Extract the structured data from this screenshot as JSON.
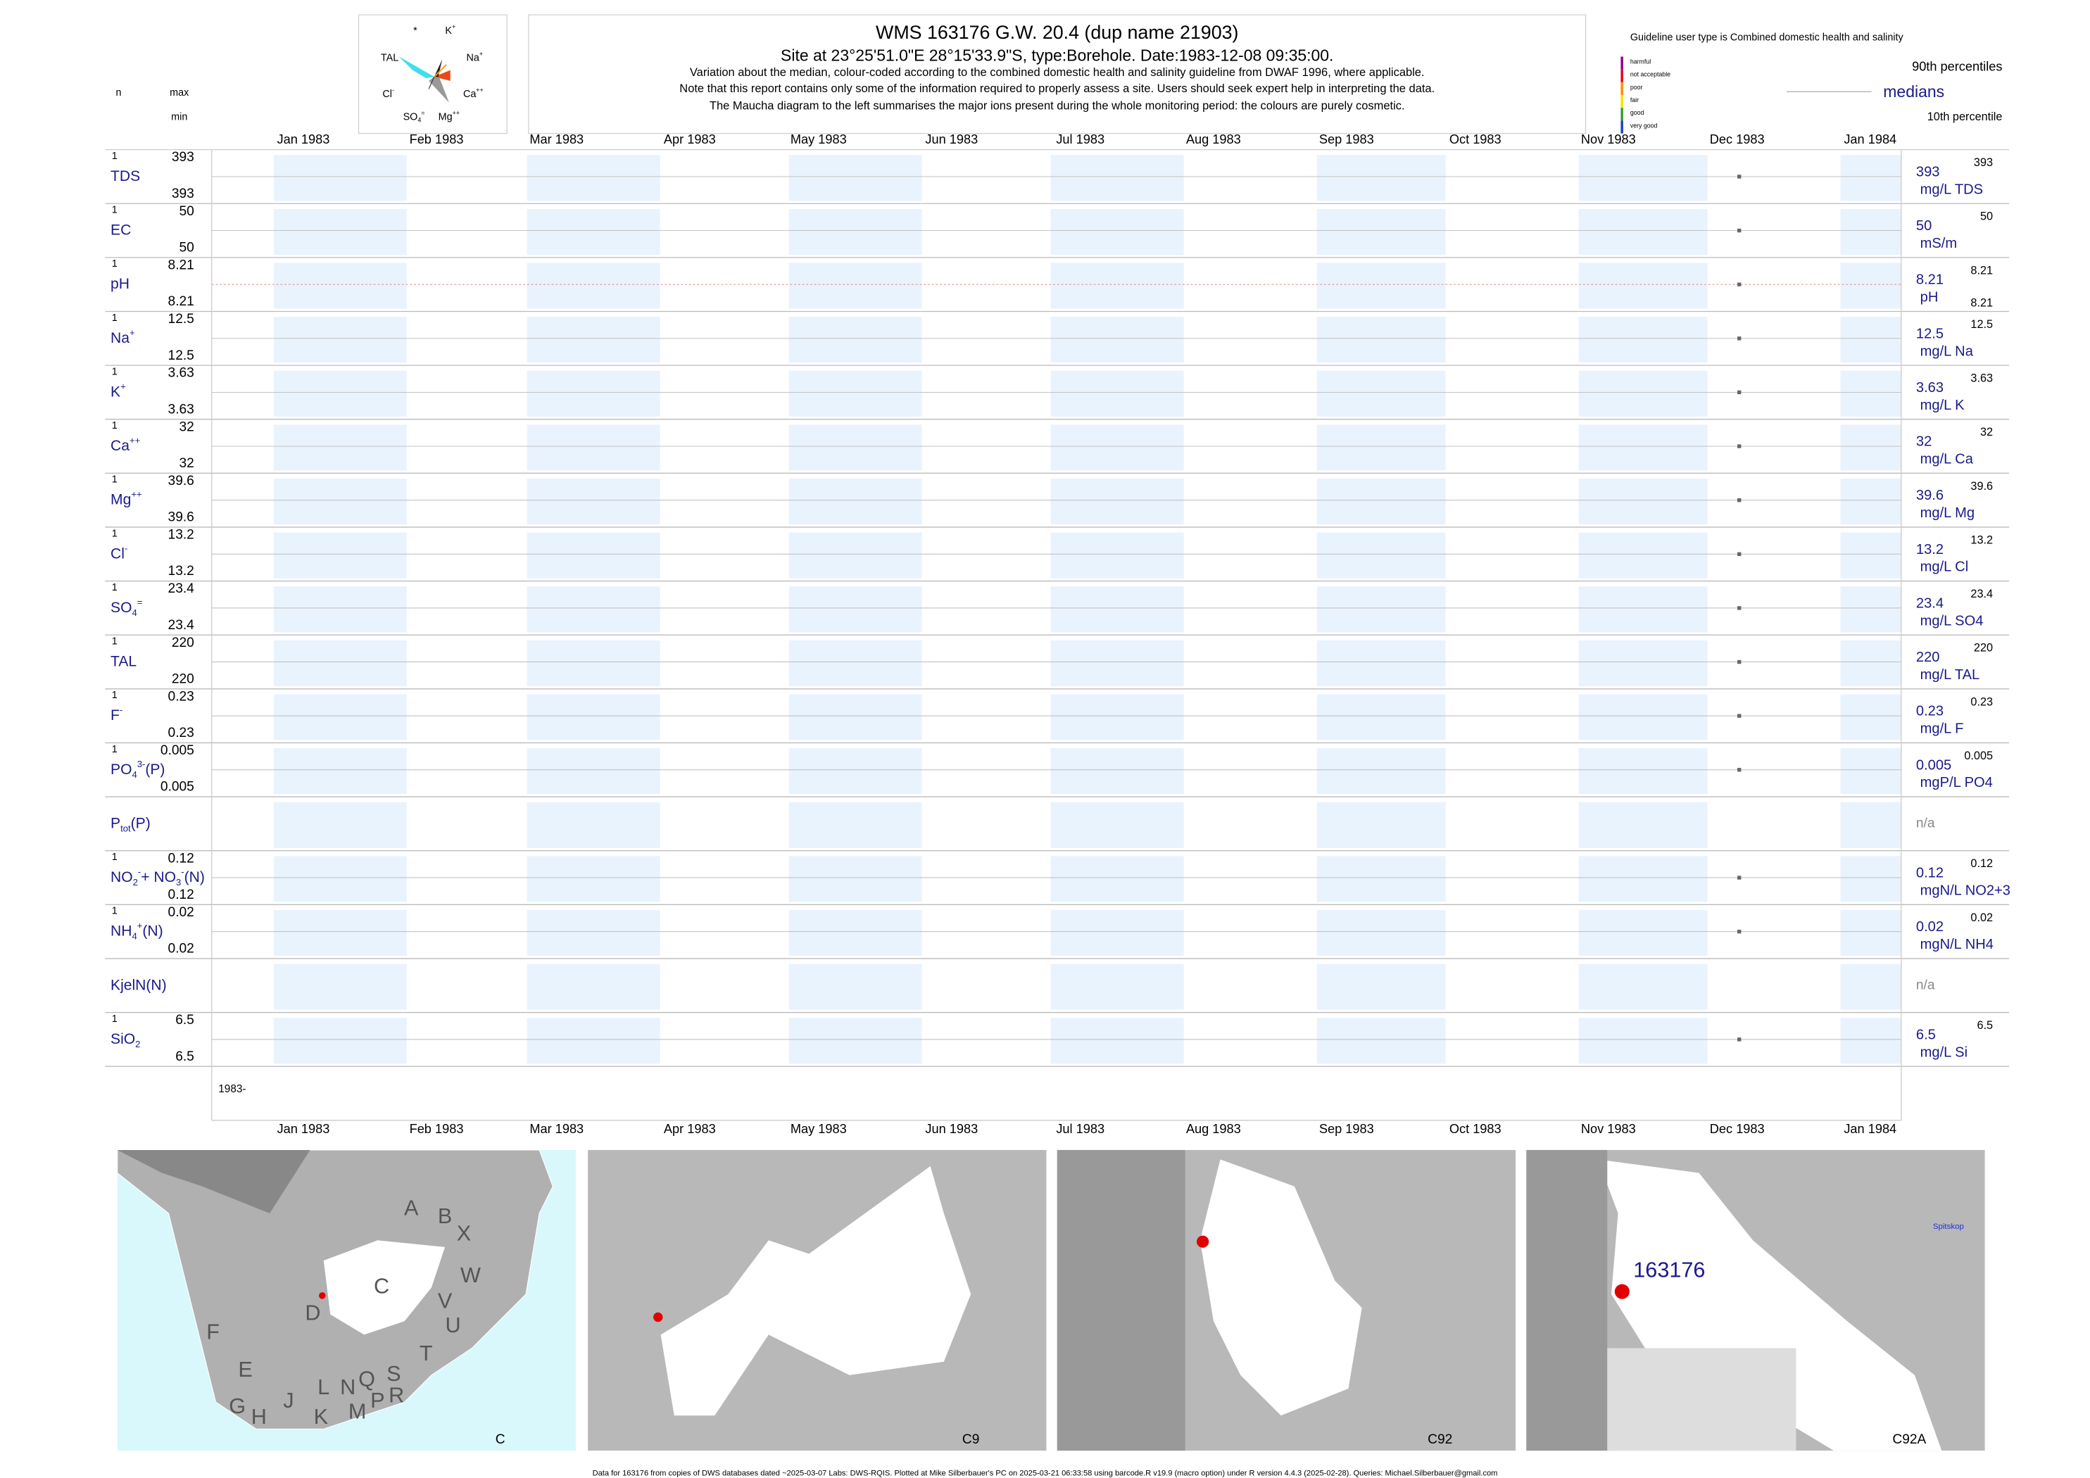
{
  "header": {
    "title": "WMS 163176  G.W. 20.4 (dup name 21903)",
    "subtitle": "Site at 23°25'51.0\"E 28°15'33.9\"S, type:Borehole. Date:1983-12-08 09:35:00.",
    "notes": [
      "Variation about the median,  colour-coded according to the combined domestic health and salinity guideline from DWAF 1996, where applicable.",
      "Note that this report contains only some of the information required to properly assess a site. Users should seek expert help in interpreting the data.",
      "The Maucha diagram to the left summarises the major ions present during the whole monitoring period: the colours are purely cosmetic."
    ],
    "column_heads": {
      "n": "n",
      "max": "max",
      "min": "min"
    }
  },
  "maucha": {
    "labels": [
      [
        {
          "text": "*"
        }
      ],
      [
        {
          "text": "K"
        },
        {
          "text": "+",
          "pos": "sup"
        }
      ],
      [
        {
          "text": "TAL"
        }
      ],
      [
        {
          "text": "Na"
        },
        {
          "text": "+",
          "pos": "sup"
        }
      ],
      [
        {
          "text": "Cl"
        },
        {
          "text": "-",
          "pos": "sup"
        }
      ],
      [
        {
          "text": "Ca"
        },
        {
          "text": "++",
          "pos": "sup"
        }
      ],
      [
        {
          "text": "SO"
        },
        {
          "text": "4",
          "pos": "sub"
        },
        {
          "text": "=",
          "pos": "sup"
        }
      ],
      [
        {
          "text": "Mg"
        },
        {
          "text": "++",
          "pos": "sup"
        }
      ]
    ]
  },
  "legend": {
    "guideline": "Guideline user type is Combined domestic health and salinity",
    "classes": [
      {
        "name": "harmful",
        "color": "#8b008b"
      },
      {
        "name": "not acceptable",
        "color": "#e8001c"
      },
      {
        "name": "poor",
        "color": "#ff8c00"
      },
      {
        "name": "fair",
        "color": "#f2e600"
      },
      {
        "name": "good",
        "color": "#2e9e2e"
      },
      {
        "name": "very good",
        "color": "#1f3fbf"
      }
    ],
    "p90": "90th percentiles",
    "median": "medians",
    "p10": "10th percentile"
  },
  "chart_data": {
    "type": "strip",
    "months": [
      "Jan 1983",
      "Feb 1983",
      "Mar 1983",
      "Apr 1983",
      "May 1983",
      "Jun 1983",
      "Jul 1983",
      "Aug 1983",
      "Sep 1983",
      "Oct 1983",
      "Nov 1983",
      "Dec 1983",
      "Jan 1984"
    ],
    "x": [
      "1983-12-08 09:35:00"
    ],
    "start_label": "1983-",
    "rows": [
      {
        "label": [
          {
            "text": "TDS"
          }
        ],
        "n": 1,
        "max": 393,
        "min": 393,
        "values": [
          393
        ],
        "unit": "mg/L TDS",
        "p90": 393
      },
      {
        "label": [
          {
            "text": "EC"
          }
        ],
        "n": 1,
        "max": 50,
        "min": 50,
        "values": [
          50
        ],
        "unit": "mS/m",
        "p90": 50
      },
      {
        "label": [
          {
            "text": "pH"
          }
        ],
        "n": 1,
        "max": 8.21,
        "min": 8.21,
        "values": [
          8.21
        ],
        "unit": "pH",
        "p90": 8.21,
        "p10": 8.21
      },
      {
        "label": [
          {
            "text": "Na"
          },
          {
            "text": "+",
            "pos": "sup"
          }
        ],
        "n": 1,
        "max": 12.5,
        "min": 12.5,
        "values": [
          12.5
        ],
        "unit": "mg/L Na",
        "p90": 12.5
      },
      {
        "label": [
          {
            "text": "K"
          },
          {
            "text": "+",
            "pos": "sup"
          }
        ],
        "n": 1,
        "max": 3.63,
        "min": 3.63,
        "values": [
          3.63
        ],
        "unit": "mg/L K",
        "p90": 3.63
      },
      {
        "label": [
          {
            "text": "Ca"
          },
          {
            "text": "++",
            "pos": "sup"
          }
        ],
        "n": 1,
        "max": 32,
        "min": 32,
        "values": [
          32
        ],
        "unit": "mg/L Ca",
        "p90": 32
      },
      {
        "label": [
          {
            "text": "Mg"
          },
          {
            "text": "++",
            "pos": "sup"
          }
        ],
        "n": 1,
        "max": 39.6,
        "min": 39.6,
        "values": [
          39.6
        ],
        "unit": "mg/L Mg",
        "p90": 39.6
      },
      {
        "label": [
          {
            "text": "Cl"
          },
          {
            "text": "-",
            "pos": "sup"
          }
        ],
        "n": 1,
        "max": 13.2,
        "min": 13.2,
        "values": [
          13.2
        ],
        "unit": "mg/L Cl",
        "p90": 13.2
      },
      {
        "label": [
          {
            "text": "SO"
          },
          {
            "text": "4",
            "pos": "sub"
          },
          {
            "text": "=",
            "pos": "sup"
          }
        ],
        "n": 1,
        "max": 23.4,
        "min": 23.4,
        "values": [
          23.4
        ],
        "unit": "mg/L SO4",
        "p90": 23.4
      },
      {
        "label": [
          {
            "text": "TAL"
          }
        ],
        "n": 1,
        "max": 220,
        "min": 220,
        "values": [
          220
        ],
        "unit": "mg/L TAL",
        "p90": 220
      },
      {
        "label": [
          {
            "text": "F"
          },
          {
            "text": "-",
            "pos": "sup"
          }
        ],
        "n": 1,
        "max": 0.23,
        "min": 0.23,
        "values": [
          0.23
        ],
        "unit": "mg/L F",
        "p90": 0.23
      },
      {
        "label": [
          {
            "text": "PO"
          },
          {
            "text": "4",
            "pos": "sub"
          },
          {
            "text": "3-",
            "pos": "sup"
          },
          {
            "text": "(P)"
          }
        ],
        "n": 1,
        "max": 0.005,
        "min": 0.005,
        "values": [
          0.005
        ],
        "unit": "mgP/L PO4",
        "p90": 0.005
      },
      {
        "label": [
          {
            "text": "P"
          },
          {
            "text": "tot",
            "pos": "sub"
          },
          {
            "text": "(P)"
          }
        ],
        "status": "n/a"
      },
      {
        "label": [
          {
            "text": "NO"
          },
          {
            "text": "2",
            "pos": "sub"
          },
          {
            "text": "-",
            "pos": "sup"
          },
          {
            "text": "+ NO"
          },
          {
            "text": "3",
            "pos": "sub"
          },
          {
            "text": "-",
            "pos": "sup"
          },
          {
            "text": "(N)"
          }
        ],
        "n": 1,
        "max": 0.12,
        "min": 0.12,
        "values": [
          0.12
        ],
        "unit": "mgN/L NO2+3",
        "p90": 0.12
      },
      {
        "label": [
          {
            "text": "NH"
          },
          {
            "text": "4",
            "pos": "sub"
          },
          {
            "text": "+",
            "pos": "sup"
          },
          {
            "text": "(N)"
          }
        ],
        "n": 1,
        "max": 0.02,
        "min": 0.02,
        "values": [
          0.02
        ],
        "unit": "mgN/L NH4",
        "p90": 0.02
      },
      {
        "label": [
          {
            "text": "KjelN(N)"
          }
        ],
        "status": "n/a"
      },
      {
        "label": [
          {
            "text": "SiO"
          },
          {
            "text": "2",
            "pos": "sub"
          }
        ],
        "n": 1,
        "max": 6.5,
        "min": 6.5,
        "values": [
          6.5
        ],
        "unit": "mg/L Si",
        "p90": 6.5
      }
    ]
  },
  "maps": [
    {
      "name": "C",
      "labels": [
        "A",
        "B",
        "X",
        "W",
        "C",
        "D",
        "V",
        "U",
        "T",
        "F",
        "E",
        "G",
        "H",
        "J",
        "L",
        "N",
        "Q",
        "S",
        "R",
        "K",
        "M",
        "P"
      ]
    },
    {
      "name": "C9",
      "labels": []
    },
    {
      "name": "C92",
      "labels": []
    },
    {
      "name": "C92A",
      "labels": [
        "163176",
        "Spitskop"
      ]
    }
  ],
  "footer": "Data for 163176 from copies of DWS databases dated ~2025-03-07 Labs: DWS-RQIS. Plotted at Mike Silberbauer's PC on 2025-03-21 06:33:58 using barcode.R v19.9 (macro option) under R version 4.4.3 (2025-02-28). Queries: Michael.Silberbauer@gmail.com"
}
